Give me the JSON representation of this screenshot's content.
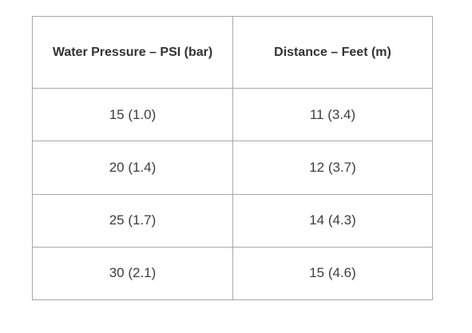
{
  "table": {
    "headers": [
      "Water Pressure – PSI (bar)",
      "Distance – Feet (m)"
    ],
    "rows": [
      [
        "15 (1.0)",
        "11 (3.4)"
      ],
      [
        "20 (1.4)",
        "12 (3.7)"
      ],
      [
        "25 (1.7)",
        "14 (4.3)"
      ],
      [
        "30 (2.1)",
        "15 (4.6)"
      ]
    ]
  },
  "colors": {
    "border": "#a9a9a9",
    "text": "#3a3a3a",
    "background": "#ffffff"
  }
}
